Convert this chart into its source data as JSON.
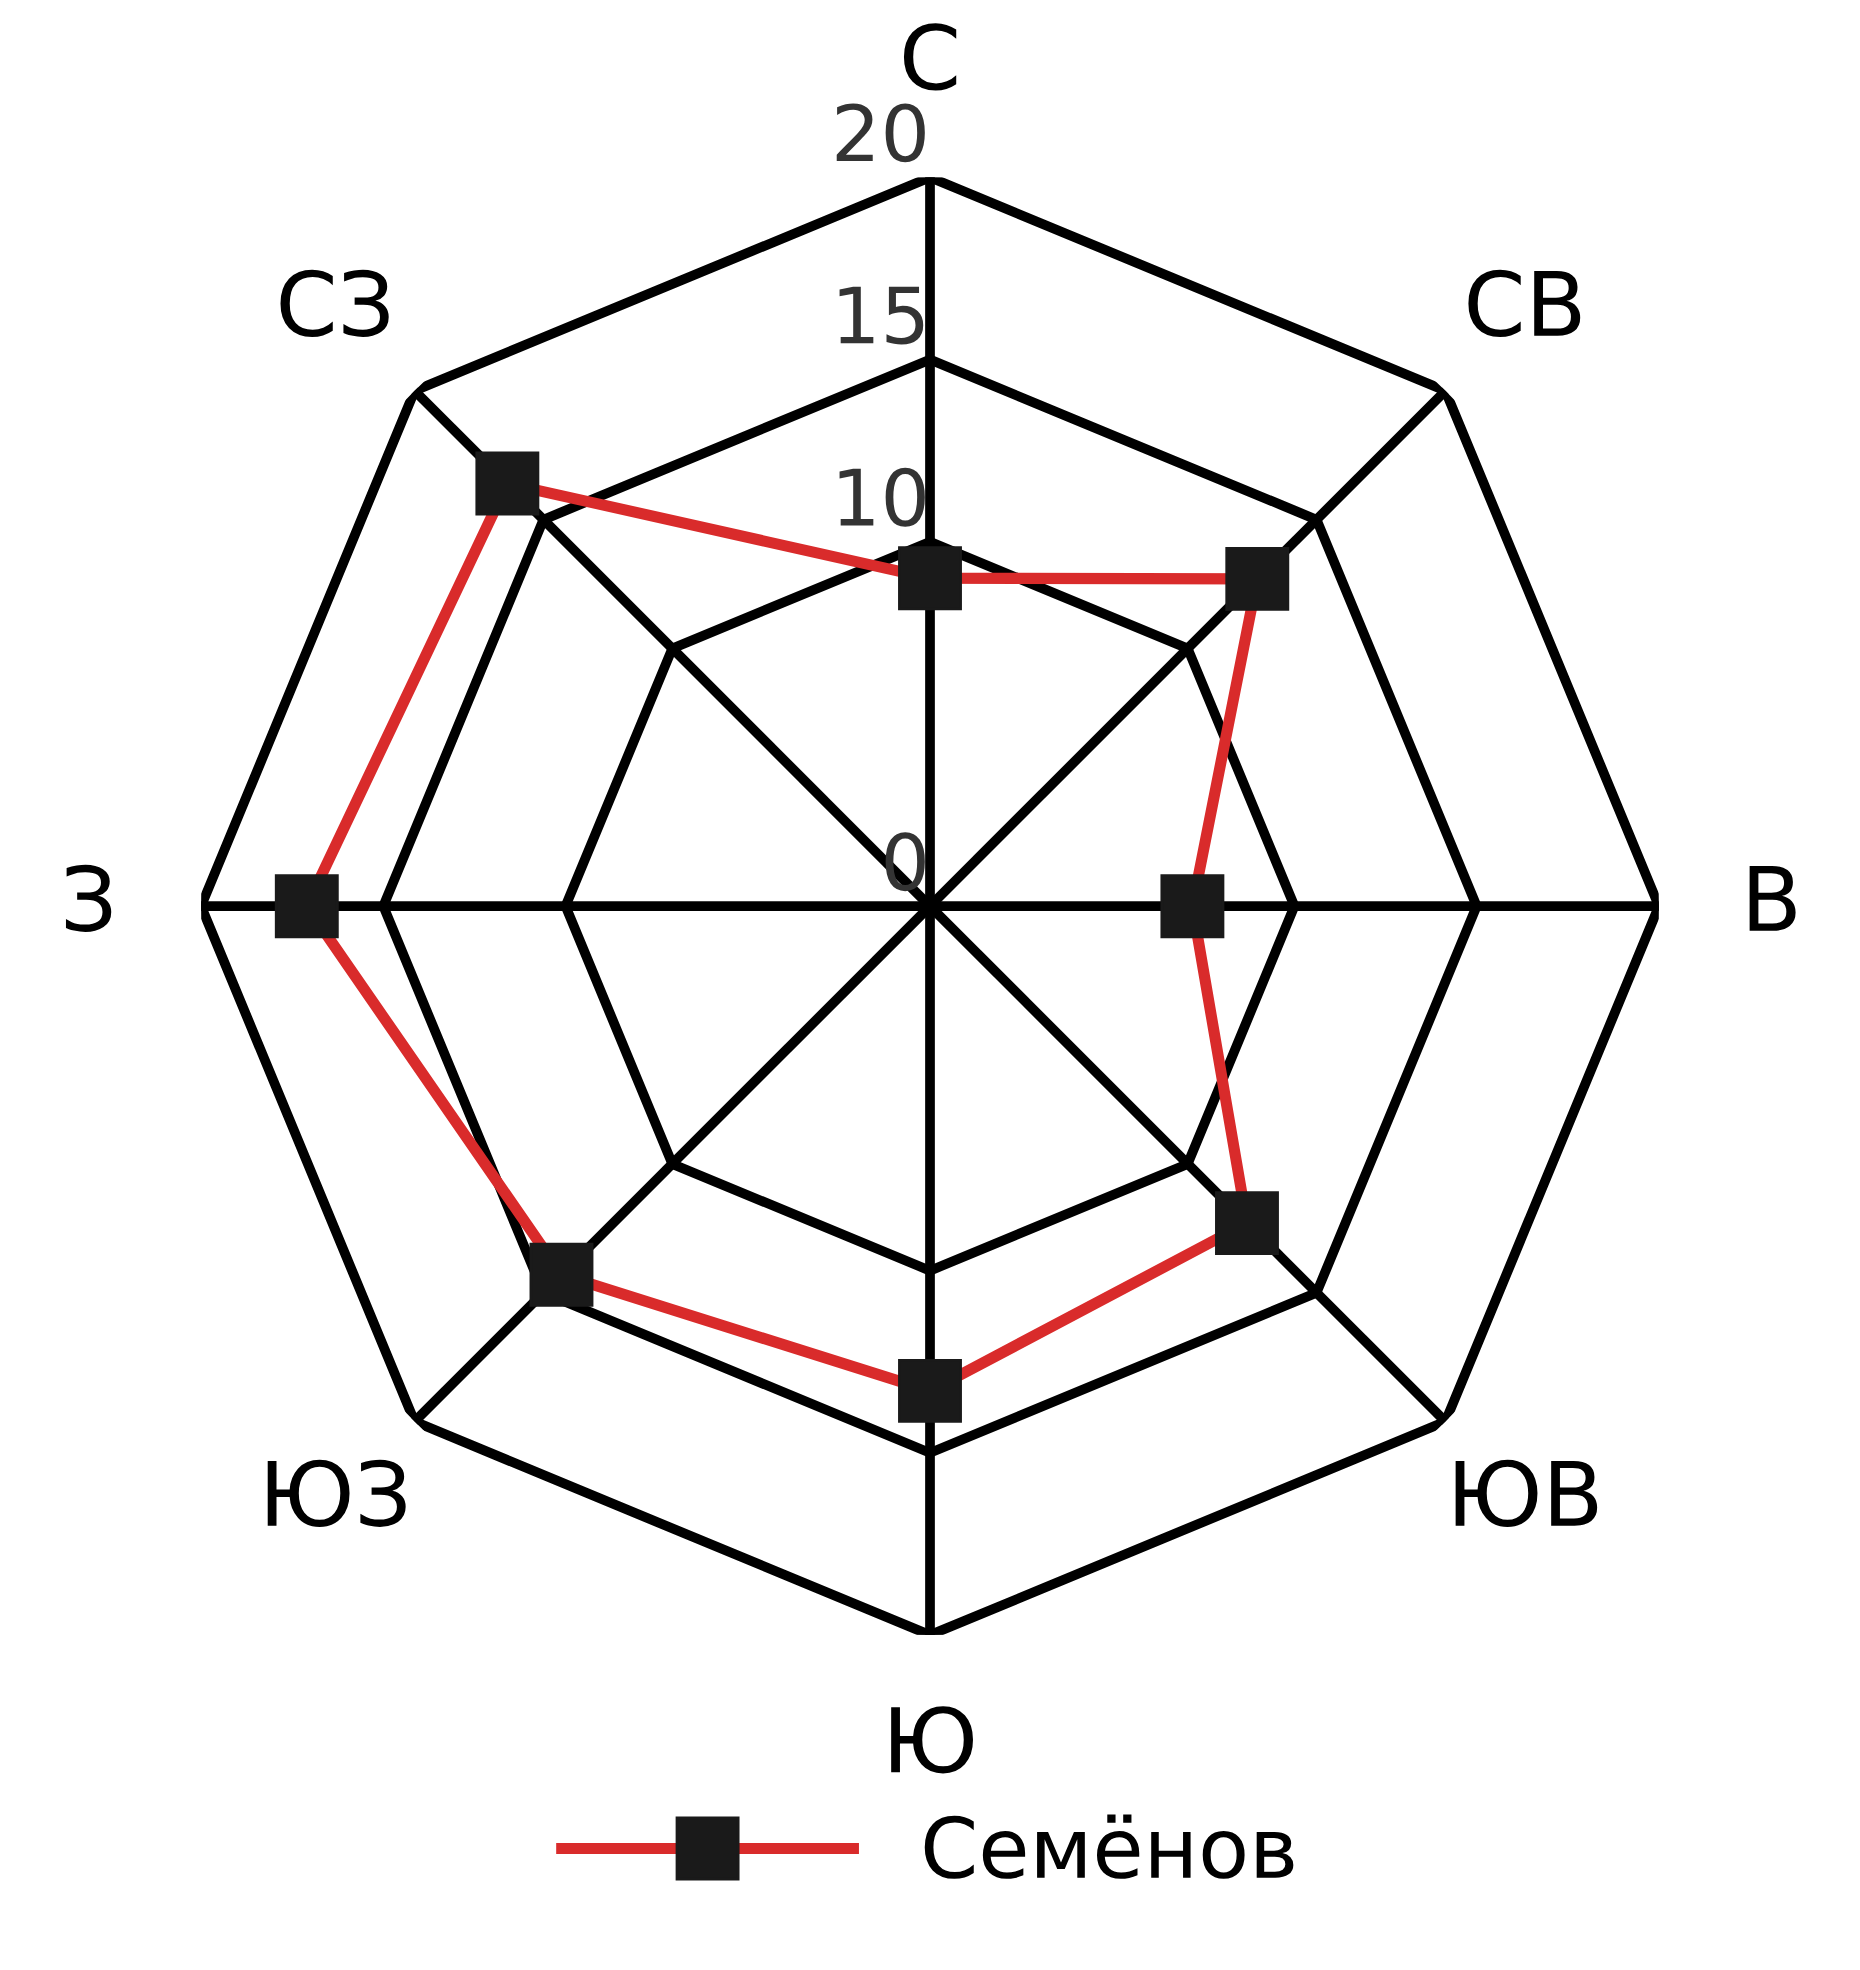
{
  "chart_data": {
    "type": "radar",
    "categories": [
      "С",
      "СВ",
      "В",
      "ЮВ",
      "Ю",
      "ЮЗ",
      "З",
      "СЗ"
    ],
    "series": [
      {
        "name": "Семёнов",
        "color": "#d92b2b",
        "values": [
          9,
          12.7,
          7.2,
          12.3,
          13.3,
          14.3,
          17.1,
          16.4
        ]
      }
    ],
    "ylim": [
      0,
      20
    ],
    "yticks": [
      0,
      10,
      15,
      20
    ],
    "marker": "square",
    "line_style": "solid",
    "legend": "bottom",
    "grid": true
  }
}
